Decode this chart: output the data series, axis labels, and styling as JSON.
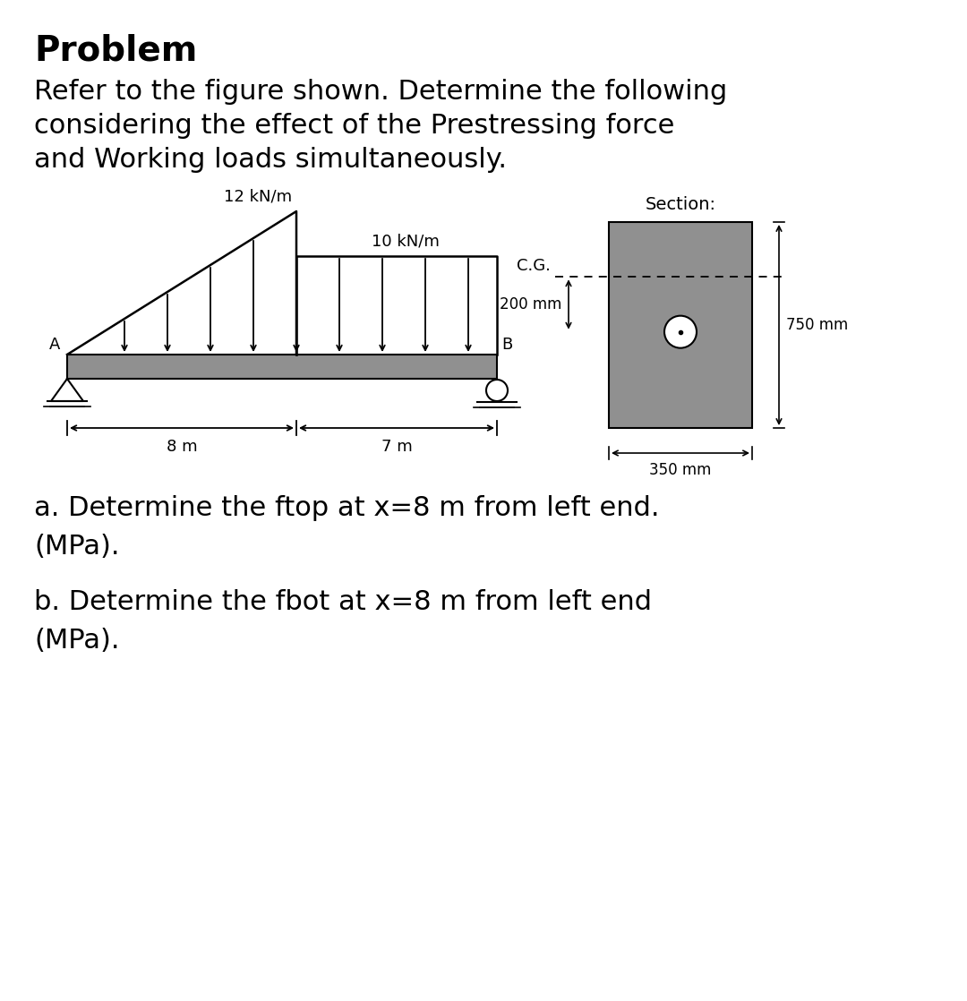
{
  "title": "Problem",
  "desc1": "Refer to the figure shown. Determine the following",
  "desc2": "considering the effect of the Prestressing force",
  "desc3": "and Working loads simultaneously.",
  "load1_label": "12 kN/m",
  "load2_label": "10 kN/m",
  "span1_label": "8 m",
  "span2_label": "7 m",
  "section_label": "Section:",
  "cg_label": "C.G.",
  "dim_200": "200 mm",
  "dim_750": "750 mm",
  "dim_350": "350 mm",
  "label_A": "A",
  "label_B": "B",
  "qa": "a. Determine the ftop at x=8 m from left end.\n(MPa).",
  "qb": "b. Determine the fbot at x=8 m from left end\n(MPa).",
  "bg_color": "#ffffff",
  "beam_color": "#909090",
  "section_color": "#909090",
  "lc": "#000000"
}
